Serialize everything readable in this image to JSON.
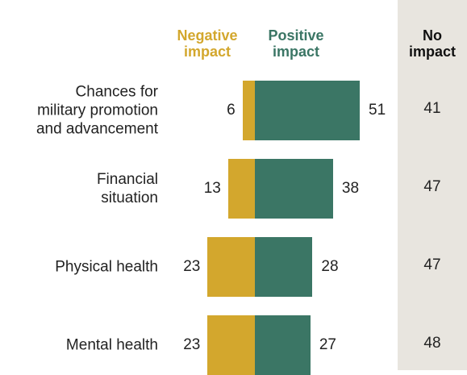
{
  "chart_data": {
    "type": "diverging_bar",
    "categories": [
      "Chances for\nmilitary promotion\nand advancement",
      "Financial\nsituation",
      "Physical health",
      "Mental health"
    ],
    "series": [
      {
        "name": "Negative\nimpact",
        "color": "#d3a72d",
        "values": [
          6,
          13,
          23,
          23
        ]
      },
      {
        "name": "Positive\nimpact",
        "color": "#3b7665",
        "values": [
          51,
          38,
          28,
          27
        ]
      }
    ],
    "no_impact": {
      "name": "No\nimpact",
      "values": [
        41,
        47,
        47,
        48
      ]
    }
  }
}
